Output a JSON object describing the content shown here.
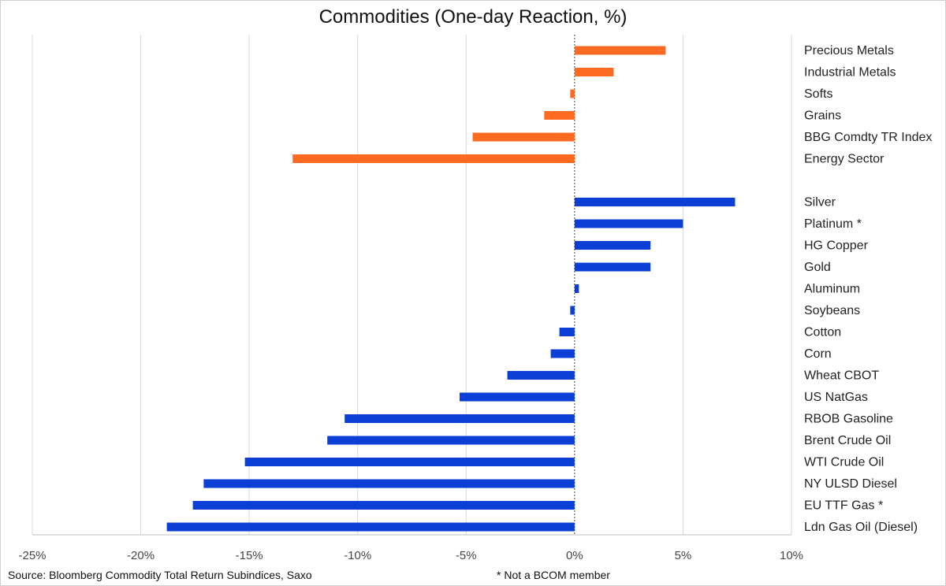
{
  "chart_data": {
    "type": "bar",
    "orientation": "horizontal",
    "title": "Commodities (One-day Reaction, %)",
    "xlabel": "",
    "ylabel": "",
    "xlim": [
      -25,
      10
    ],
    "x_ticks": [
      "-25%",
      "-20%",
      "-15%",
      "-10%",
      "-5%",
      "0%",
      "5%",
      "10%"
    ],
    "x_tick_values": [
      -25,
      -20,
      -15,
      -10,
      -5,
      0,
      5,
      10
    ],
    "grid": "vertical",
    "colors": {
      "sector": "#ff6a22",
      "commodity": "#0b3fd6"
    },
    "series": [
      {
        "group": "sector",
        "categories": [
          "Precious Metals",
          "Industrial Metals",
          "Softs",
          "Grains",
          "BBG Comdty TR Index",
          "Energy Sector"
        ],
        "values": [
          4.2,
          1.8,
          -0.2,
          -1.4,
          -4.7,
          -13.0
        ]
      },
      {
        "group": "commodity",
        "categories": [
          "Silver",
          "Platinum *",
          "HG Copper",
          "Gold",
          "Aluminum",
          "Soybeans",
          "Cotton",
          "Corn",
          "Wheat CBOT",
          "US NatGas",
          "RBOB Gasoline",
          "Brent Crude Oil",
          "WTI Crude Oil",
          "NY ULSD Diesel",
          "EU TTF Gas *",
          "Ldn Gas Oil (Diesel)"
        ],
        "values": [
          7.4,
          5.0,
          3.5,
          3.5,
          0.2,
          -0.2,
          -0.7,
          -1.1,
          -3.1,
          -5.3,
          -10.6,
          -11.4,
          -15.2,
          -17.1,
          -17.6,
          -18.8
        ]
      }
    ]
  },
  "footer": {
    "source": "Source: Bloomberg Commodity Total Return Subindices, Saxo",
    "note": "* Not a BCOM member"
  }
}
